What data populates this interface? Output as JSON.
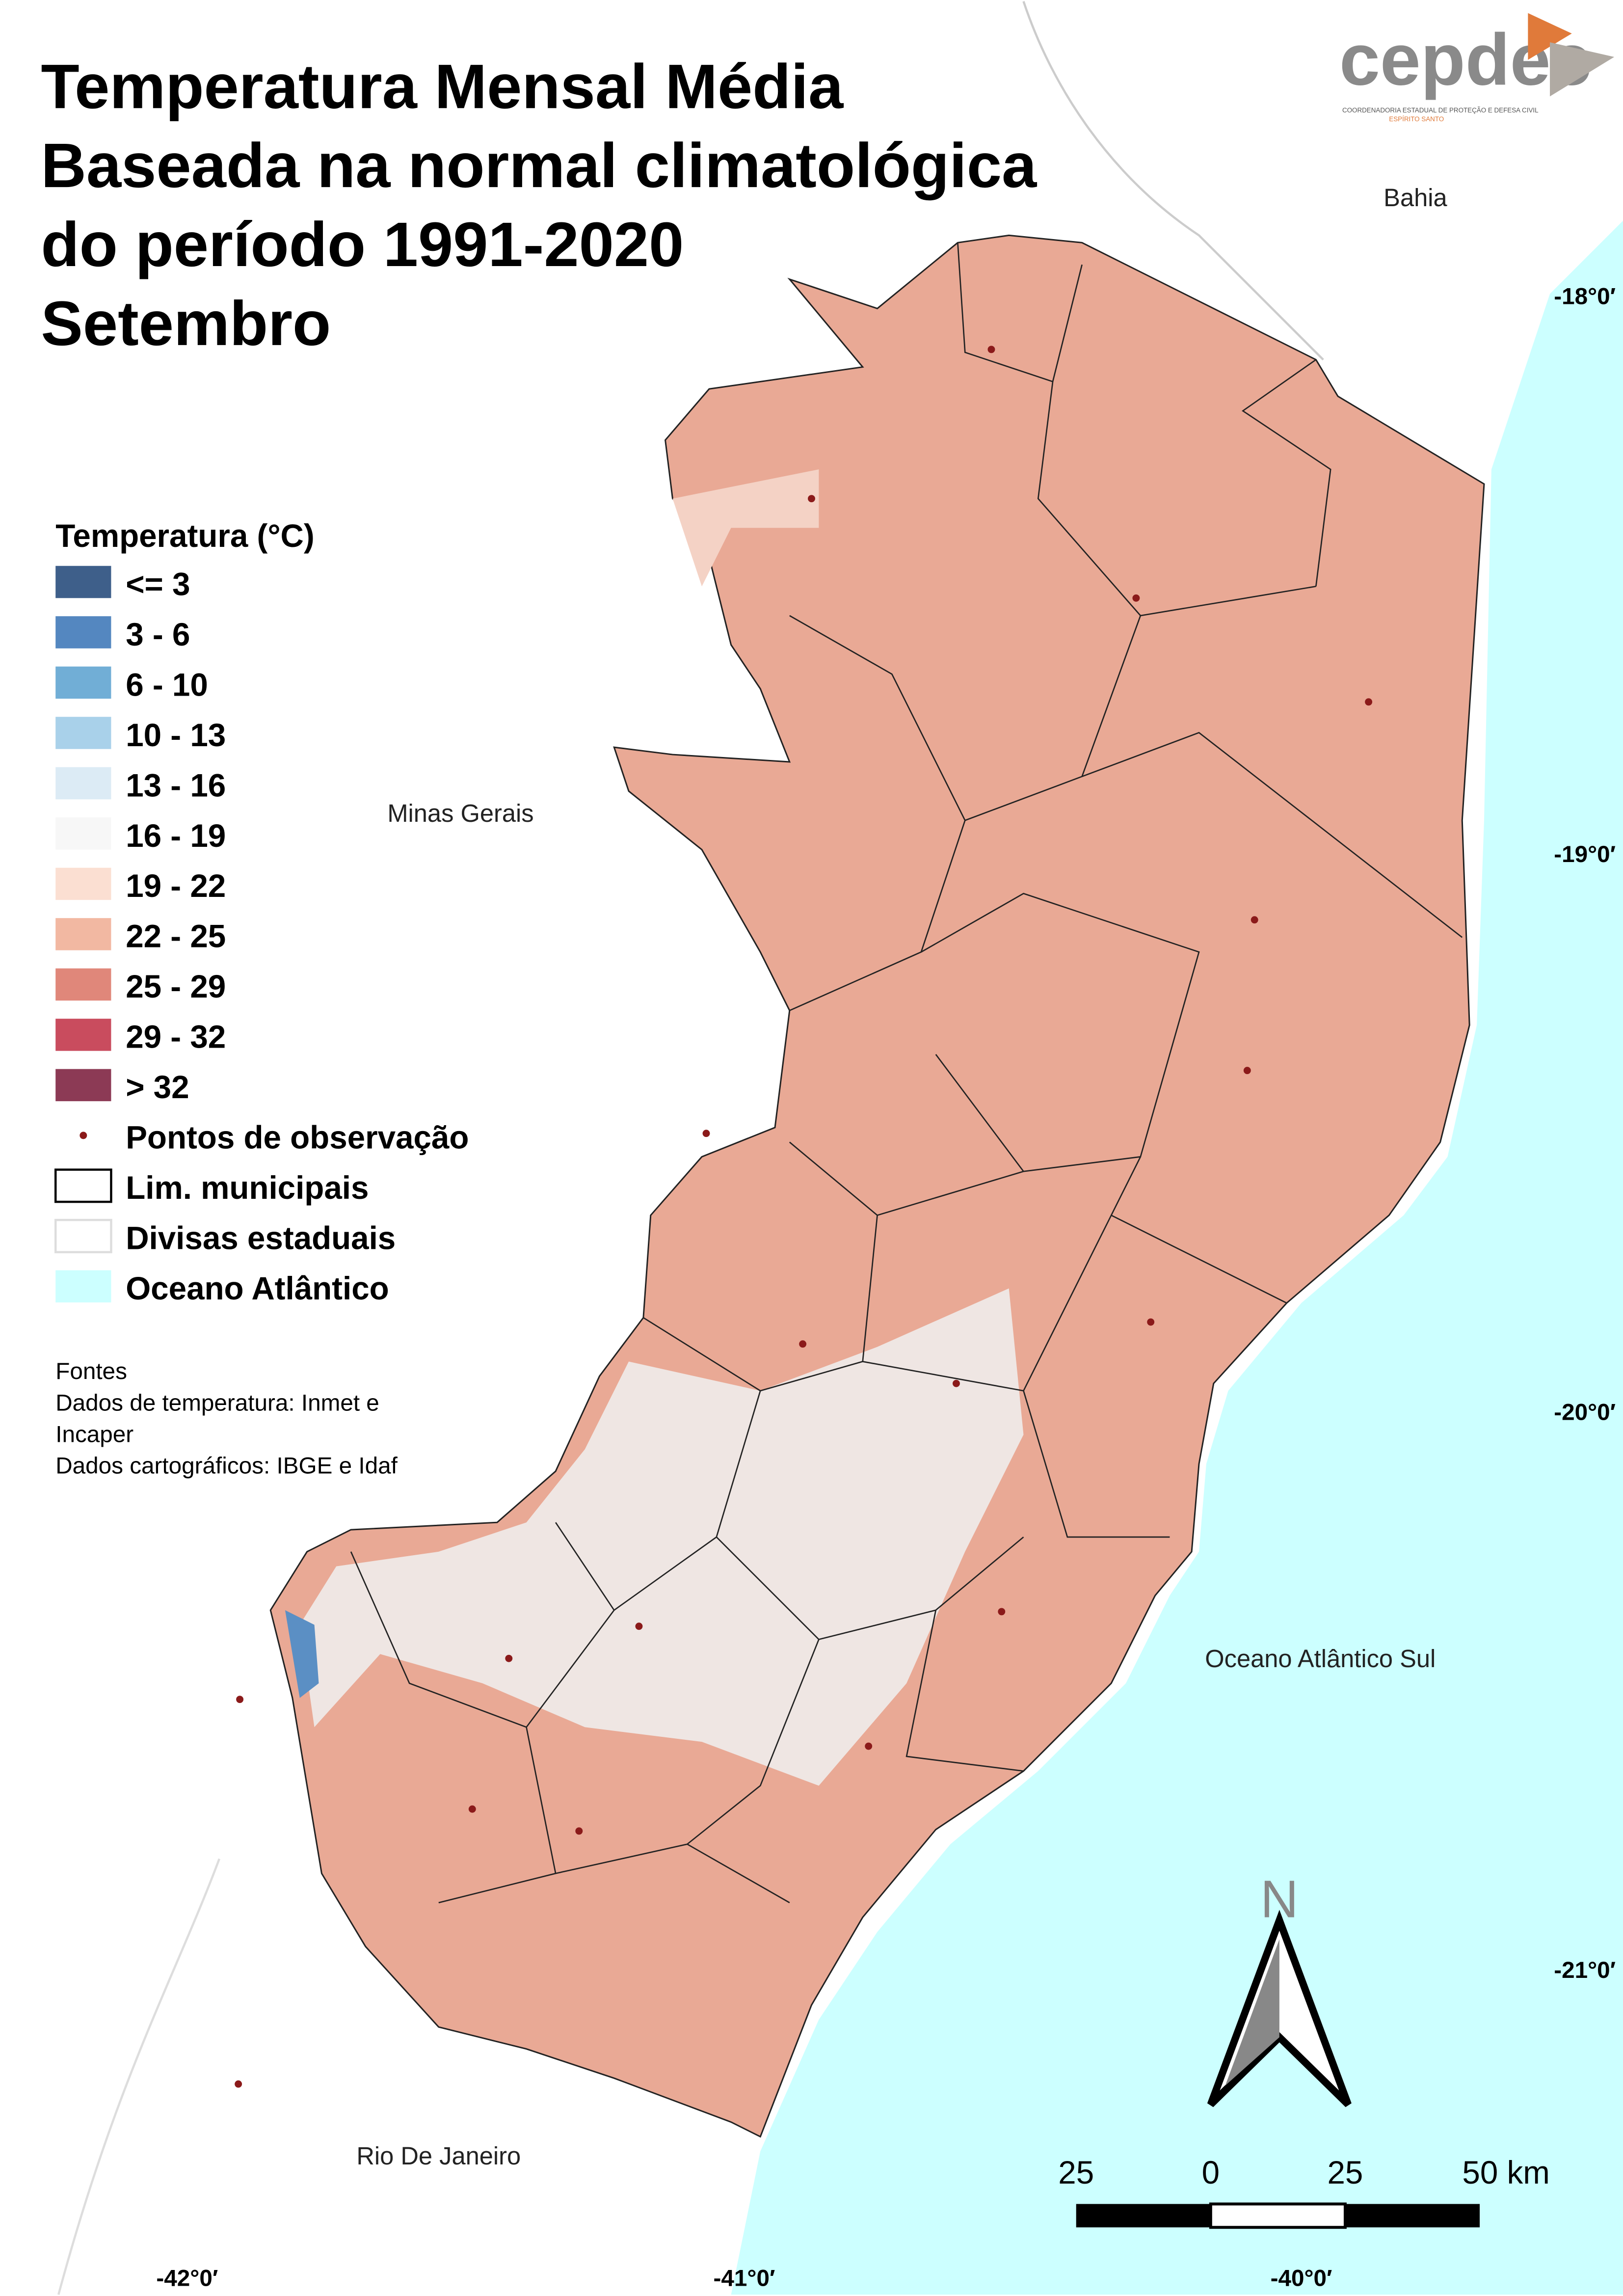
{
  "logo": {
    "text": "cepdec",
    "subtitle": "COORDENADORIA ESTADUAL DE PROTEÇÃO E DEFESA CIVIL",
    "state": "ESPÍRITO SANTO"
  },
  "title": [
    "Temperatura Mensal Média",
    "Baseada na normal climatológica",
    "do período 1991-2020",
    "Setembro"
  ],
  "legend": {
    "title": "Temperatura (°C)",
    "items": [
      {
        "label": "<= 3",
        "color": "#3e5f8a"
      },
      {
        "label": "3 - 6",
        "color": "#5487c0"
      },
      {
        "label": "6 - 10",
        "color": "#71aed6"
      },
      {
        "label": "10 - 13",
        "color": "#a9d1ea"
      },
      {
        "label": "13 - 16",
        "color": "#dcebf5"
      },
      {
        "label": "16 - 19",
        "color": "#f7f7f7"
      },
      {
        "label": "19 - 22",
        "color": "#fbdfd2"
      },
      {
        "label": "22 - 25",
        "color": "#f2b8a2"
      },
      {
        "label": "25 - 29",
        "color": "#e0877a"
      },
      {
        "label": "29 - 32",
        "color": "#c94c5e"
      },
      {
        "label": "> 32",
        "color": "#8c3a55"
      }
    ],
    "layers": [
      "Pontos de observação",
      "Lim. municipais",
      "Divisas estaduais",
      "Oceano Atlântico"
    ]
  },
  "sources": [
    "Fontes",
    "Dados de temperatura: Inmet e",
    "Incaper",
    "Dados cartográficos: IBGE e Idaf"
  ],
  "places": [
    "Bahia",
    "Minas Gerais",
    "Oceano Atlântico Sul",
    "Rio De Janeiro"
  ],
  "latitudes": [
    "-18°0′",
    "-19°0′",
    "-20°0′",
    "-21°0′"
  ],
  "longitudes": [
    "-42°0′",
    "-41°0′",
    "-40°0′"
  ],
  "north": "N",
  "scale_bar": [
    "25",
    "0",
    "25",
    "50 km"
  ]
}
